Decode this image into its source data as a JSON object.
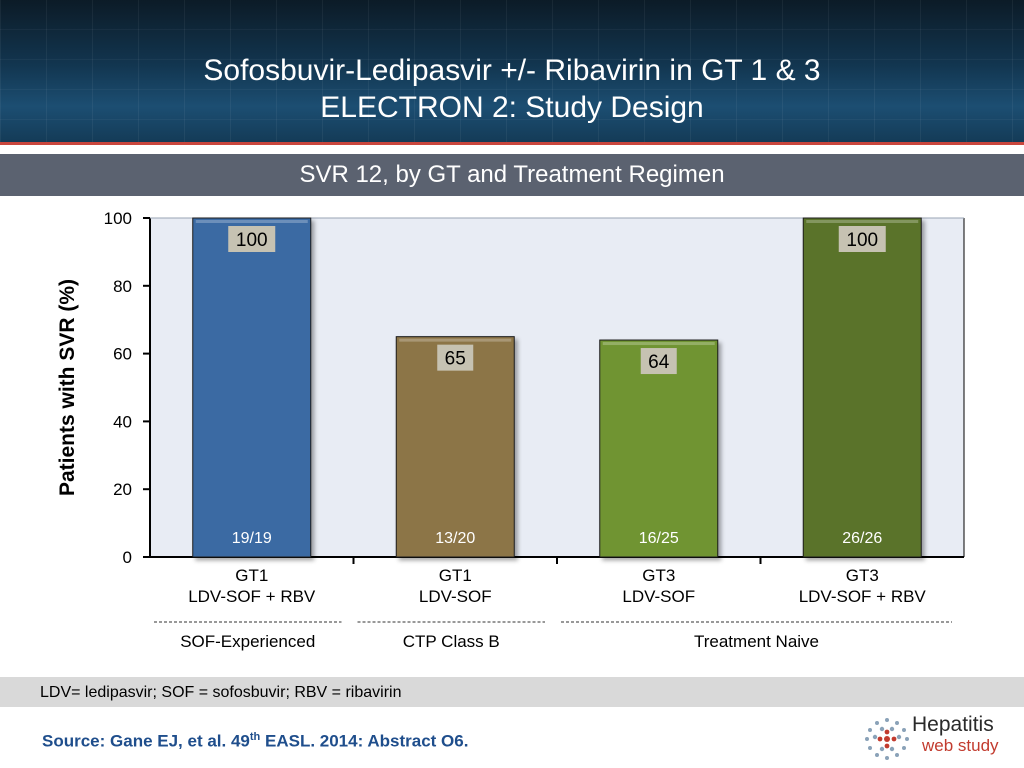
{
  "header": {
    "title_line1": "Sofosbuvir-Ledipasvir +/- Ribavirin in GT 1 & 3",
    "title_line2": "ELECTRON 2: Study Design"
  },
  "subtitle": "SVR 12, by GT and Treatment Regimen",
  "footnote": "LDV= ledipasvir; SOF = sofosbuvir; RBV = ribavirin",
  "source": {
    "prefix": "Source: Gane EJ, et al. 49",
    "sup": "th",
    "suffix": " EASL. 2014: Abstract O6."
  },
  "logo": {
    "brand": "Hepatitis",
    "sub": "web study"
  },
  "colors": {
    "plot_bg": "#e8ecf4",
    "bars": [
      "#3a6aa3",
      "#8c7446",
      "#6f9433",
      "#5a7329"
    ],
    "value_label_bg": "#c6c2b2"
  },
  "chart_data": {
    "type": "bar",
    "ylabel": "Patients with SVR (%)",
    "ylim": [
      0,
      100
    ],
    "yticks": [
      0,
      20,
      40,
      60,
      80,
      100
    ],
    "categories": [
      [
        "GT1",
        "LDV-SOF + RBV"
      ],
      [
        "GT1",
        "LDV-SOF"
      ],
      [
        "GT3",
        "LDV-SOF"
      ],
      [
        "GT3",
        "LDV-SOF + RBV"
      ]
    ],
    "values": [
      100,
      65,
      64,
      100
    ],
    "data_labels": [
      "100",
      "65",
      "64",
      "100"
    ],
    "counts": [
      "19/19",
      "13/20",
      "16/25",
      "26/26"
    ],
    "groups": [
      {
        "label": "SOF-Experienced",
        "categories": [
          0
        ]
      },
      {
        "label": "CTP Class B",
        "categories": [
          1
        ]
      },
      {
        "label": "Treatment Naive",
        "categories": [
          2,
          3
        ]
      }
    ],
    "grid": false
  }
}
